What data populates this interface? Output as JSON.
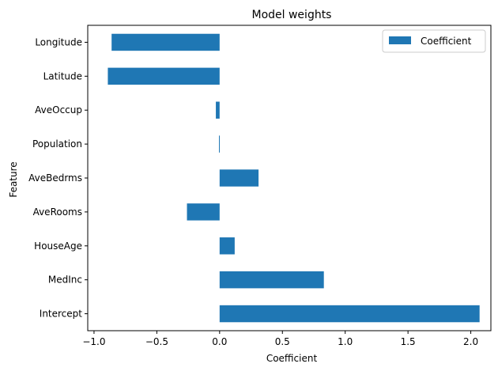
{
  "chart_data": {
    "type": "bar",
    "orientation": "horizontal",
    "title": "Model weights",
    "xlabel": "Coefficient",
    "ylabel": "Feature",
    "categories": [
      "Intercept",
      "MedInc",
      "HouseAge",
      "AveRooms",
      "AveBedrms",
      "Population",
      "AveOccup",
      "Latitude",
      "Longitude"
    ],
    "series": [
      {
        "name": "Coefficient",
        "values": [
          2.07,
          0.83,
          0.12,
          -0.26,
          0.31,
          -0.005,
          -0.03,
          -0.89,
          -0.86
        ],
        "color": "#1f77b4"
      }
    ],
    "xlim": [
      -1.05,
      2.16
    ],
    "xticks": [
      -1.0,
      -0.5,
      0.0,
      0.5,
      1.0,
      1.5,
      2.0
    ],
    "xtick_labels": [
      "−1.0",
      "−0.5",
      "0.0",
      "0.5",
      "1.0",
      "1.5",
      "2.0"
    ],
    "grid": false,
    "legend_position": "top-right"
  }
}
